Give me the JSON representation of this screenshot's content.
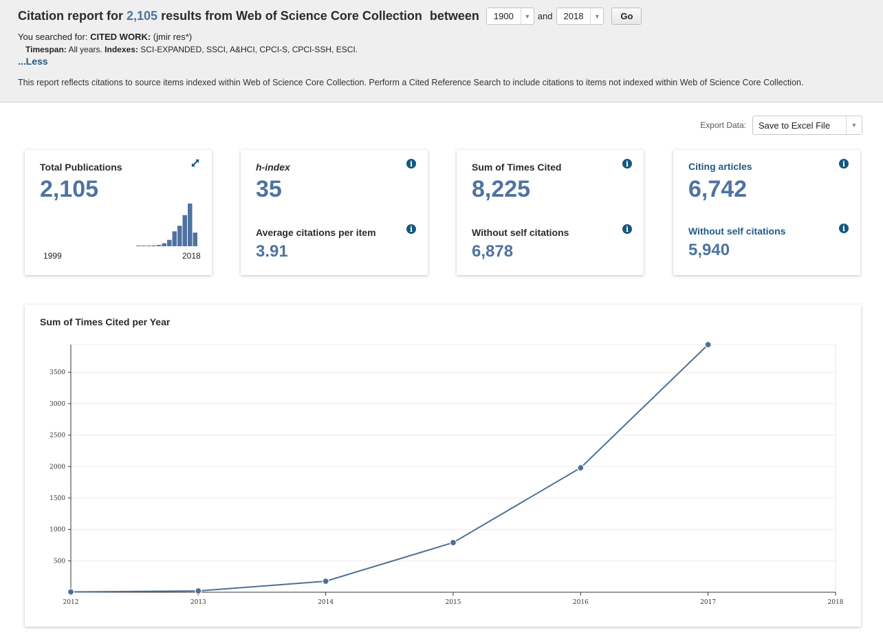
{
  "header": {
    "title_pre": "Citation report for",
    "title_count": "2,105",
    "title_post": "results from Web of Science Core Collection",
    "between": "between",
    "from_year": "1900",
    "and_label": "and",
    "to_year": "2018",
    "go_label": "Go",
    "searched_prefix": "You searched for:",
    "searched_key": "CITED WORK:",
    "searched_value": "(jmir res*)",
    "timespan_key": "Timespan:",
    "timespan_value": "All years.",
    "indexes_key": "Indexes:",
    "indexes_value": "SCI-EXPANDED, SSCI, A&HCI, CPCI-S, CPCI-SSH, ESCI.",
    "less_link": "...Less",
    "note": "This report reflects citations to source items indexed within Web of Science Core Collection. Perform a Cited Reference Search to include citations to items not indexed within Web of Science Core Collection."
  },
  "export": {
    "label": "Export Data:",
    "selected": "Save to Excel File"
  },
  "cards": {
    "total_publications": {
      "label": "Total Publications",
      "value": "2,105",
      "year_start": "1999",
      "year_end": "2018",
      "spark_values": [
        0.01,
        0.01,
        0.01,
        0.02,
        0.03,
        0.07,
        0.15,
        0.35,
        0.48,
        0.73,
        1.0,
        0.32
      ],
      "bar_color": "#4e73a0"
    },
    "h_index": {
      "label": "h-index",
      "value": "35",
      "avg_label": "Average citations per item",
      "avg_value": "3.91"
    },
    "times_cited": {
      "label": "Sum of Times Cited",
      "value": "8,225",
      "without_label": "Without self citations",
      "without_value": "6,878"
    },
    "citing_articles": {
      "label": "Citing articles",
      "value": "6,742",
      "without_label": "Without self citations",
      "without_value": "5,940"
    }
  },
  "chart_data": {
    "type": "line",
    "title": "Sum of Times Cited per Year",
    "x": [
      2012,
      2013,
      2014,
      2015,
      2016,
      2017
    ],
    "x_ticks": [
      "2012",
      "2013",
      "2014",
      "2015",
      "2016",
      "2017",
      "2018"
    ],
    "values": [
      5,
      20,
      175,
      790,
      1980,
      3940
    ],
    "y_ticks": [
      500,
      1000,
      1500,
      2000,
      2500,
      3000,
      3500
    ],
    "xlim": [
      2012,
      2018
    ],
    "ylim": [
      0,
      3940
    ],
    "grid": true,
    "line_color": "#4e6f95"
  }
}
